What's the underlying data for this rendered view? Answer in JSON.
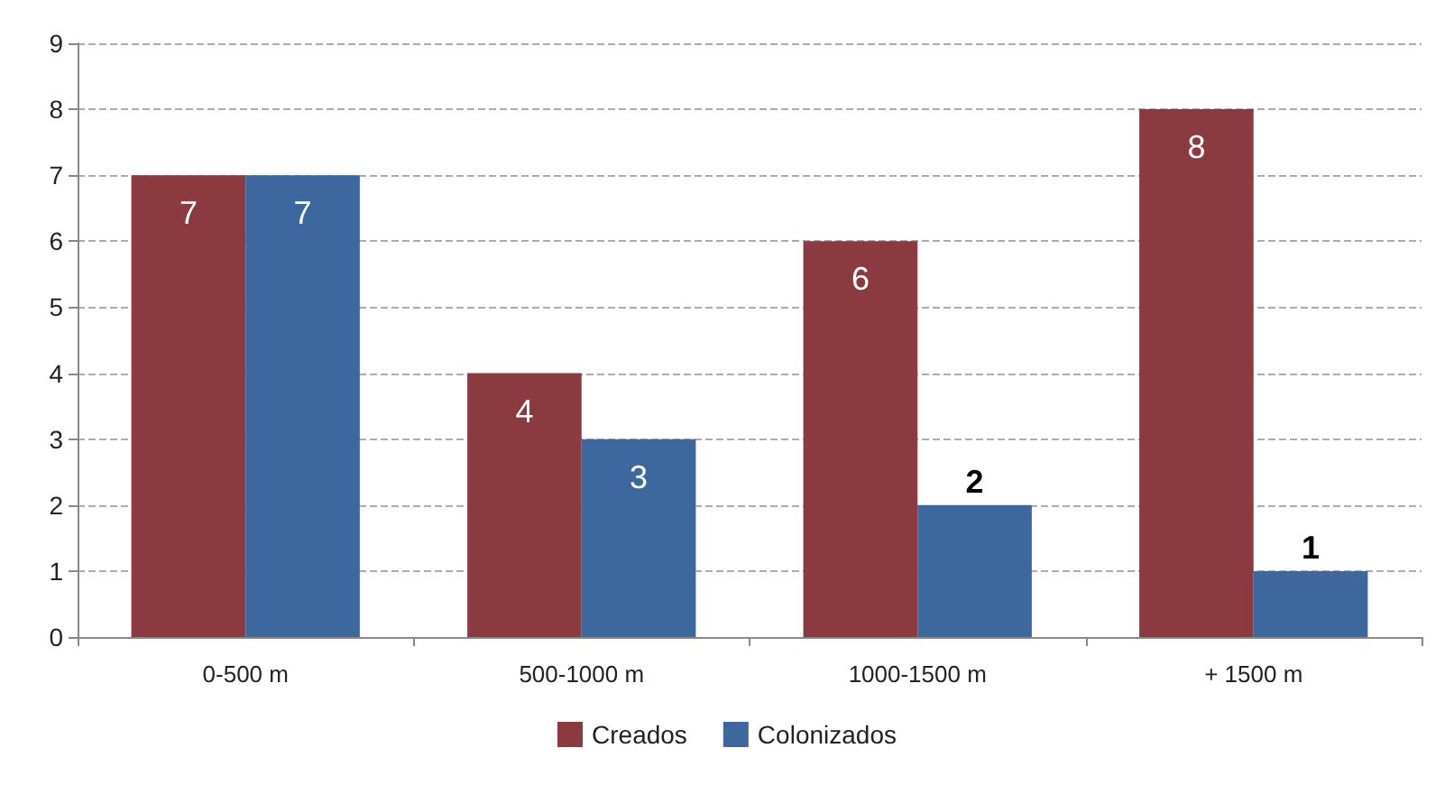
{
  "chart_data": {
    "type": "bar",
    "categories": [
      "0-500 m",
      "500-1000 m",
      "1000-1500 m",
      "+ 1500 m"
    ],
    "series": [
      {
        "name": "Creados",
        "color": "#8b3a40",
        "values": [
          7,
          4,
          6,
          8
        ]
      },
      {
        "name": "Colonizados",
        "color": "#3d689e",
        "values": [
          7,
          3,
          2,
          1
        ]
      }
    ],
    "ylim": [
      0,
      9
    ],
    "yticks": [
      0,
      1,
      2,
      3,
      4,
      5,
      6,
      7,
      8,
      9
    ],
    "grid": "y",
    "legend": "bottom",
    "data_labels": true
  }
}
